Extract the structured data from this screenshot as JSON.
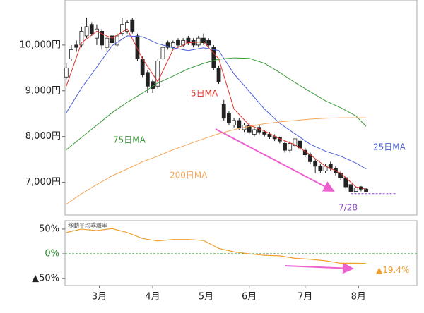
{
  "chart_data": {
    "type": "candlestick",
    "xlim": [
      -0.5,
      138
    ],
    "xticks": [
      {
        "value": 13,
        "label": "3月"
      },
      {
        "value": 34,
        "label": "4月"
      },
      {
        "value": 55,
        "label": "5月"
      },
      {
        "value": 72,
        "label": "6月"
      },
      {
        "value": 94,
        "label": "7月"
      },
      {
        "value": 115,
        "label": "8月"
      }
    ],
    "ylim": [
      6300,
      11000
    ],
    "yticks": [
      {
        "value": 7000,
        "label": "7,000円"
      },
      {
        "value": 8000,
        "label": "8,000円"
      },
      {
        "value": 9000,
        "label": "9,000円"
      },
      {
        "value": 10000,
        "label": "10,000円"
      }
    ],
    "candles": {
      "x": [
        0,
        2,
        4,
        6,
        8,
        10,
        12,
        14,
        16,
        18,
        20,
        22,
        24,
        26,
        28,
        30,
        32,
        34,
        36,
        38,
        40,
        42,
        44,
        46,
        48,
        50,
        52,
        54,
        56,
        58,
        60,
        62,
        64,
        66,
        68,
        70,
        72,
        74,
        76,
        78,
        80,
        82,
        84,
        86,
        88,
        90,
        92,
        94,
        96,
        98,
        100,
        102,
        104,
        106,
        108,
        110,
        112,
        114,
        116,
        118
      ],
      "open": [
        9300,
        9700,
        10000,
        10000,
        10200,
        10450,
        10150,
        10300,
        9950,
        10200,
        10000,
        10250,
        10300,
        10550,
        10200,
        9700,
        9400,
        9200,
        9100,
        9700,
        10050,
        9950,
        10100,
        10000,
        10150,
        10100,
        10000,
        10150,
        10100,
        9950,
        9500,
        8700,
        8500,
        8250,
        8350,
        8150,
        8250,
        8050,
        8200,
        8100,
        8050,
        8000,
        7980,
        7850,
        7700,
        7800,
        7900,
        7700,
        7600,
        7450,
        7350,
        7250,
        7400,
        7300,
        7200,
        7100,
        6950,
        6800,
        6900,
        6850
      ],
      "high": [
        9600,
        10000,
        10100,
        10400,
        10600,
        10500,
        10450,
        10350,
        10200,
        10300,
        10250,
        10600,
        10550,
        10600,
        10250,
        9750,
        9450,
        9250,
        9700,
        10050,
        10100,
        10100,
        10150,
        10150,
        10200,
        10150,
        10200,
        10250,
        10150,
        10000,
        9550,
        8800,
        8550,
        8400,
        8400,
        8300,
        8300,
        8200,
        8250,
        8150,
        8100,
        8050,
        8000,
        7900,
        7900,
        8000,
        7950,
        7750,
        7650,
        7500,
        7400,
        7400,
        7450,
        7350,
        7250,
        7150,
        7000,
        6900,
        6920,
        6870
      ],
      "low": [
        9250,
        9650,
        9850,
        9950,
        10150,
        10200,
        10000,
        9900,
        9850,
        9950,
        9950,
        10200,
        10250,
        10250,
        9650,
        9300,
        8950,
        8950,
        9050,
        9650,
        9900,
        9900,
        9950,
        9950,
        10000,
        9950,
        9950,
        10000,
        9950,
        9450,
        9150,
        8350,
        8250,
        8200,
        8150,
        8100,
        8050,
        8000,
        8050,
        8000,
        7950,
        7900,
        7850,
        7650,
        7650,
        7750,
        7700,
        7550,
        7400,
        7200,
        7200,
        7200,
        7250,
        7150,
        7050,
        6850,
        6750,
        6780,
        6800,
        6780
      ],
      "close": [
        9500,
        9900,
        9950,
        10300,
        10400,
        10250,
        10350,
        10000,
        10150,
        10050,
        10200,
        10450,
        10500,
        10300,
        9700,
        9350,
        9100,
        9050,
        9650,
        9950,
        9950,
        10050,
        10000,
        10100,
        10050,
        10000,
        10150,
        10050,
        10000,
        9500,
        9200,
        8400,
        8300,
        8350,
        8200,
        8250,
        8100,
        8150,
        8100,
        8050,
        8000,
        7950,
        7900,
        7700,
        7850,
        7950,
        7750,
        7600,
        7450,
        7350,
        7250,
        7350,
        7300,
        7200,
        7100,
        6900,
        6800,
        6880,
        6850,
        6800
      ]
    },
    "lines": {
      "x": [
        0,
        6,
        12,
        18,
        24,
        30,
        36,
        42,
        48,
        54,
        60,
        66,
        72,
        78,
        84,
        90,
        96,
        102,
        108,
        114,
        118
      ],
      "series": [
        {
          "name": "5日MA",
          "color": "#e0302a",
          "values": [
            9100,
            10050,
            10300,
            10150,
            10350,
            9700,
            9200,
            9900,
            10050,
            10070,
            9700,
            8600,
            8250,
            8120,
            7950,
            7820,
            7600,
            7350,
            7200,
            6900,
            6850
          ]
        },
        {
          "name": "25日MA",
          "color": "#4a5fd8",
          "values": [
            8520,
            9060,
            9520,
            9985,
            10200,
            10180,
            10030,
            9940,
            9880,
            9940,
            9880,
            9370,
            8985,
            8600,
            8290,
            8060,
            7830,
            7680,
            7570,
            7420,
            7290
          ]
        },
        {
          "name": "75日MA",
          "color": "#3a9a3a",
          "values": [
            7710,
            7980,
            8250,
            8520,
            8750,
            8950,
            9170,
            9320,
            9480,
            9600,
            9690,
            9720,
            9710,
            9600,
            9400,
            9180,
            8980,
            8780,
            8630,
            8450,
            8220
          ]
        },
        {
          "name": "200日MA",
          "color": "#f5a85a",
          "values": [
            6520,
            6750,
            6950,
            7140,
            7290,
            7450,
            7570,
            7710,
            7830,
            7950,
            8060,
            8150,
            8220,
            8280,
            8320,
            8350,
            8380,
            8400,
            8410,
            8410,
            8410
          ]
        }
      ]
    },
    "low_marker": {
      "label": "7/28",
      "value": 6750,
      "x": 112
    },
    "deviation": {
      "title": "移動平均乖離率",
      "color": "#f0a030",
      "ylim": [
        -64,
        67
      ],
      "yticks": [
        {
          "value": -50,
          "label": "▲50%"
        },
        {
          "value": 0,
          "label": "0%"
        },
        {
          "value": 50,
          "label": "50%"
        }
      ],
      "values": [
        43,
        50,
        47,
        51,
        43,
        31,
        26,
        29,
        29,
        27,
        11,
        4,
        0,
        -3,
        -4,
        -9,
        -11,
        -14,
        -19,
        -19,
        -19.4
      ],
      "end_label": {
        "value": -19.4,
        "label": "▲19.4%"
      }
    }
  }
}
